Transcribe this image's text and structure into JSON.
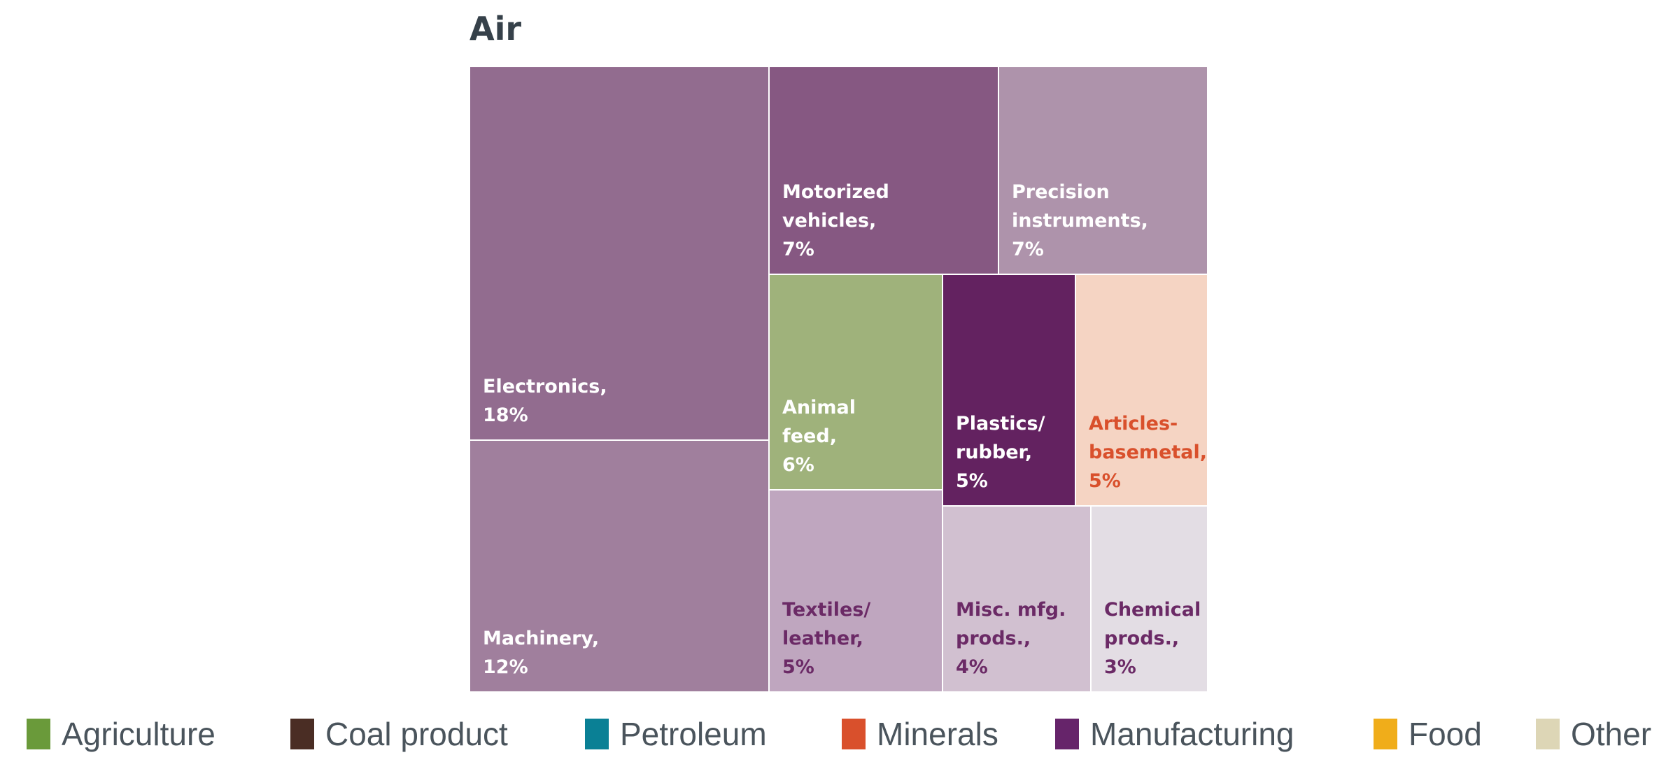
{
  "chart_data": {
    "type": "treemap",
    "title": "Air",
    "items": [
      {
        "name": "Electronics",
        "label_line1": "Electronics,",
        "label_line2": "18%",
        "value": 18,
        "category": "Manufacturing",
        "color": "#926c8f",
        "text_color": "#ffffff"
      },
      {
        "name": "Machinery",
        "label_line1": "Machinery,",
        "label_line2": "12%",
        "value": 12,
        "category": "Manufacturing",
        "color": "#a07f9d",
        "text_color": "#ffffff"
      },
      {
        "name": "Motorized vehicles",
        "label_line1": "Motorized",
        "label_line2": "vehicles,",
        "label_line3": "7%",
        "value": 7,
        "category": "Manufacturing",
        "color": "#865882",
        "text_color": "#ffffff"
      },
      {
        "name": "Precision instruments",
        "label_line1": "Precision",
        "label_line2": "instruments,",
        "label_line3": "7%",
        "value": 7,
        "category": "Manufacturing",
        "color": "#ae93ab",
        "text_color": "#ffffff"
      },
      {
        "name": "Animal feed",
        "label_line1": "Animal",
        "label_line2": "feed,",
        "label_line3": "6%",
        "value": 6,
        "category": "Agriculture",
        "color": "#9fb27b",
        "text_color": "#ffffff"
      },
      {
        "name": "Plastics/rubber",
        "label_line1": "Plastics/",
        "label_line2": "rubber,",
        "label_line3": "5%",
        "value": 5,
        "category": "Manufacturing",
        "color": "#632260",
        "text_color": "#ffffff"
      },
      {
        "name": "Articles-basemetal",
        "label_line1": "Articles-",
        "label_line2": "basemetal,",
        "label_line3": "5%",
        "value": 5,
        "category": "Minerals",
        "color": "#f5d4c3",
        "text_color": "#d9502c"
      },
      {
        "name": "Textiles/leather",
        "label_line1": "Textiles/",
        "label_line2": "leather,",
        "label_line3": "5%",
        "value": 5,
        "category": "Manufacturing",
        "color": "#bfa6bf",
        "text_color": "#6b2a66"
      },
      {
        "name": "Misc. mfg. prods.",
        "label_line1": "Misc. mfg.",
        "label_line2": "prods.,",
        "label_line3": "4%",
        "value": 4,
        "category": "Manufacturing",
        "color": "#d1c0d0",
        "text_color": "#6b2a66"
      },
      {
        "name": "Chemical prods.",
        "label_line1": "Chemical",
        "label_line2": "prods.,",
        "label_line3": "3%",
        "value": 3,
        "category": "Manufacturing",
        "color": "#e3dde4",
        "text_color": "#6b2a66"
      }
    ],
    "legend": [
      {
        "label": "Agriculture",
        "color": "#6a9a3a"
      },
      {
        "label": "Coal product",
        "color": "#4a2d24"
      },
      {
        "label": "Petroleum",
        "color": "#0a8095"
      },
      {
        "label": "Minerals",
        "color": "#d9502c"
      },
      {
        "label": "Manufacturing",
        "color": "#66246a"
      },
      {
        "label": "Food",
        "color": "#f0ad1a"
      },
      {
        "label": "Other",
        "color": "#ddd6b6"
      }
    ],
    "legend_position": "bottom"
  }
}
